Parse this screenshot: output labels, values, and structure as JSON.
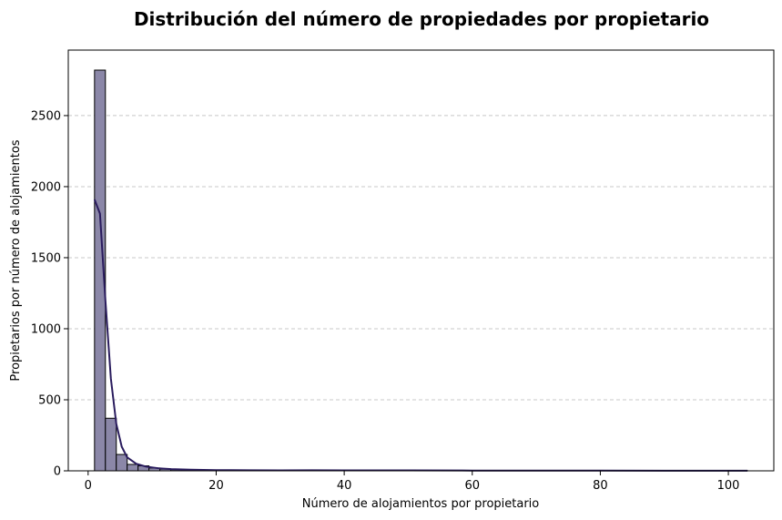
{
  "chart_data": {
    "type": "bar",
    "title": "Distribución del número de propiedades por propietario",
    "xlabel": "Número de alojamientos por propietario",
    "ylabel": "Propietarios por número de alojamientos",
    "xlim": [
      -3.1,
      107.1
    ],
    "ylim": [
      0,
      2961
    ],
    "xticks": [
      0,
      20,
      40,
      60,
      80,
      100
    ],
    "yticks": [
      0,
      500,
      1000,
      1500,
      2000,
      2500
    ],
    "grid": {
      "y": true,
      "style": "dashed"
    },
    "bar_color": "#8b87a8",
    "bar_edge_color": "#000000",
    "kde_color": "#2a1c5e",
    "bins": {
      "start": 1,
      "width": 1.7,
      "counts": [
        2820,
        370,
        115,
        45,
        35,
        20,
        12,
        8,
        6,
        5,
        5,
        4,
        4,
        3,
        3,
        3,
        2,
        2,
        2,
        2,
        2,
        2,
        2,
        1,
        1,
        1,
        1,
        1,
        1,
        1,
        1,
        1,
        1,
        1,
        1,
        1,
        1,
        1,
        1,
        1,
        1,
        1,
        1,
        1,
        1,
        1,
        1,
        1,
        1,
        1,
        1,
        1,
        1,
        1,
        1,
        1,
        1,
        1,
        1,
        1
      ]
    },
    "kde": {
      "x": [
        1,
        1.85,
        2.7,
        3.55,
        4.4,
        5.25,
        6.1,
        7.5,
        9,
        11,
        13,
        16,
        20,
        25,
        30,
        35,
        40,
        50,
        60,
        70,
        80,
        90,
        103
      ],
      "y": [
        1910,
        1810,
        1200,
        650,
        330,
        170,
        95,
        50,
        30,
        18,
        12,
        8,
        5,
        4,
        3,
        4,
        3,
        3,
        2,
        2,
        2,
        1,
        1
      ]
    }
  }
}
